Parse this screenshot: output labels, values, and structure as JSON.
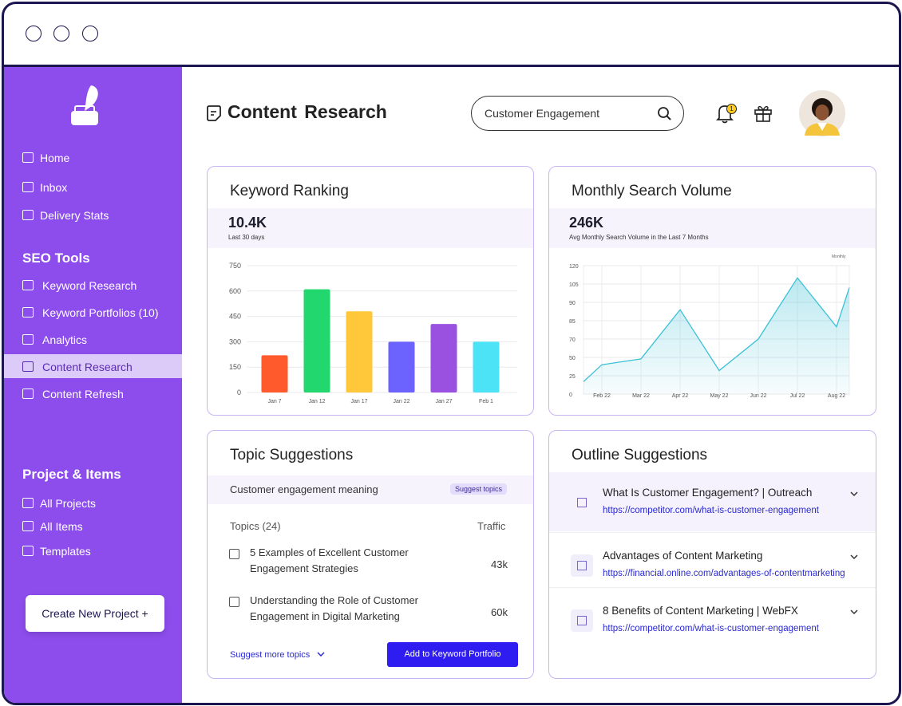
{
  "sidebar": {
    "nav": [
      "Home",
      "Inbox",
      "Delivery Stats"
    ],
    "seo_tools": {
      "heading": "SEO Tools",
      "items": [
        "Keyword Research",
        "Keyword Portfolios (10)",
        "Analytics",
        "Content Research",
        "Content Refresh"
      ],
      "active": 3
    },
    "projects": {
      "heading": "Project & Items",
      "items": [
        "All Projects",
        "All Items",
        "Templates"
      ]
    },
    "create_button": "Create New Project +"
  },
  "header": {
    "title": "Content Research",
    "search": "Customer Engagement",
    "notifications": "1"
  },
  "chart_data": [
    {
      "type": "bar",
      "title": "Keyword Ranking",
      "stat": "10.4K",
      "stat_label": "Last 30 days",
      "categories": [
        "Jan 7",
        "Jan 12",
        "Jan 17",
        "Jan 22",
        "Jan 27",
        "Feb 1"
      ],
      "values": [
        220,
        610,
        480,
        300,
        405,
        300
      ],
      "colors": [
        "#ff5a2c",
        "#22d86e",
        "#ffc83a",
        "#6c63ff",
        "#9b51e0",
        "#4ce3f7"
      ],
      "ylim": [
        0,
        750
      ],
      "yticks": [
        0,
        150,
        300,
        450,
        600,
        750
      ],
      "grid": true
    },
    {
      "type": "line",
      "title": "Monthly Search Volume",
      "stat": "246K",
      "stat_label": "Avg Monthly Search Volume in the Last 7 Months",
      "dropdown": "Monthly",
      "categories": [
        null,
        "Feb 22",
        "Mar 22",
        "Apr 22",
        "May 22",
        "Jun 22",
        "Jul 22",
        "Aug 22",
        null
      ],
      "values": [
        17,
        40,
        48,
        88,
        32,
        70,
        110,
        80,
        102
      ],
      "color": "#3cc0d6",
      "ylim": [
        0,
        120
      ],
      "yticks": [
        0,
        25,
        50,
        70,
        85,
        90,
        105,
        120
      ],
      "grid": true
    }
  ],
  "topics": {
    "title": "Topic Suggestions",
    "query": "Customer engagement meaning",
    "suggest_button": "Suggest topics",
    "columns": [
      "Topics (24)",
      "Traffic"
    ],
    "rows": [
      [
        "5 Examples of Excellent Customer Engagement Strategies",
        "43k"
      ],
      [
        "Understanding the Role of Customer Engagement in Digital Marketing",
        "60k"
      ]
    ],
    "more_link": "Suggest more topics",
    "add_button": "Add to Keyword Portfolio"
  },
  "outline": {
    "title": "Outline Suggestions",
    "items": [
      {
        "title": "What Is Customer Engagement? | Outreach",
        "url": "https://competitor.com/what-is-customer-engagement"
      },
      {
        "title": "Advantages of Content Marketing",
        "url": "https://financial.online.com/advantages-of-contentmarketing"
      },
      {
        "title": "8 Benefits of Content Marketing | WebFX",
        "url": "https://competitor.com/what-is-customer-engagement"
      }
    ]
  }
}
